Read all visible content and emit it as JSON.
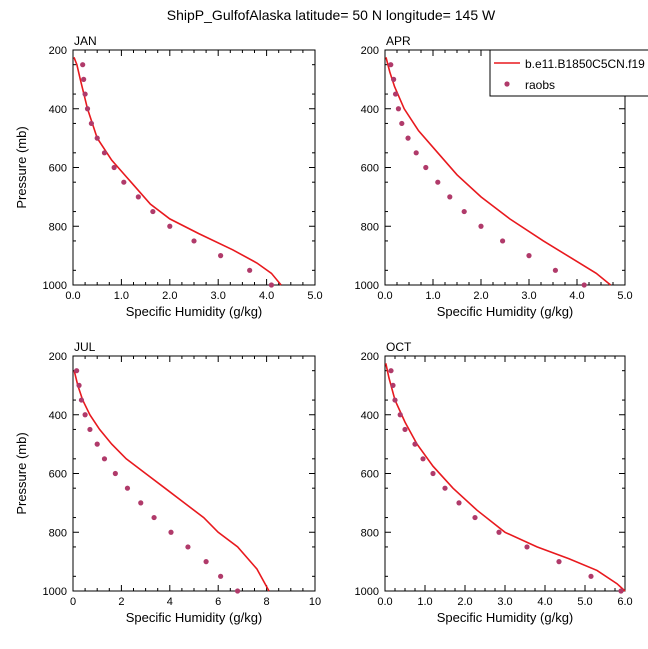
{
  "figure": {
    "title": "ShipP_GulfofAlaska  latitude= 50 N longitude= 145 W"
  },
  "legend": {
    "model_label": "b.e11.B1850C5CN.f19",
    "obs_label": "raobs",
    "model_color": "#e8191e",
    "obs_color": "#b03a6a"
  },
  "chart_data": [
    {
      "type": "line",
      "panel": "JAN",
      "xlabel": "Specific Humidity (g/kg)",
      "ylabel": "Pressure (mb)",
      "xlim": [
        0,
        5
      ],
      "ylim": [
        1000,
        200
      ],
      "xticks": [
        "0.0",
        "1.0",
        "2.0",
        "3.0",
        "4.0",
        "5.0"
      ],
      "yticks": [
        "200",
        "400",
        "600",
        "800",
        "1000"
      ],
      "model": {
        "x": [
          0.02,
          0.08,
          0.15,
          0.3,
          0.5,
          0.8,
          1.2,
          1.6,
          2.0,
          2.6,
          3.3,
          3.8,
          4.1,
          4.3
        ],
        "y": [
          225,
          250,
          300,
          400,
          500,
          575,
          650,
          725,
          775,
          825,
          880,
          925,
          960,
          1000
        ]
      },
      "obs": {
        "x": [
          0.2,
          0.22,
          0.25,
          0.3,
          0.38,
          0.5,
          0.65,
          0.85,
          1.05,
          1.35,
          1.65,
          2.0,
          2.5,
          3.05,
          3.65,
          4.1
        ],
        "y": [
          250,
          300,
          350,
          400,
          450,
          500,
          550,
          600,
          650,
          700,
          750,
          800,
          850,
          900,
          950,
          1000
        ]
      }
    },
    {
      "type": "line",
      "panel": "APR",
      "xlabel": "Specific Humidity (g/kg)",
      "ylabel": "",
      "xlim": [
        0,
        5
      ],
      "ylim": [
        1000,
        200
      ],
      "xticks": [
        "0.0",
        "1.0",
        "2.0",
        "3.0",
        "4.0",
        "5.0"
      ],
      "yticks": [
        "200",
        "400",
        "600",
        "800",
        "1000"
      ],
      "legend": "top-right",
      "model": {
        "x": [
          0.02,
          0.1,
          0.2,
          0.4,
          0.7,
          1.1,
          1.5,
          2.0,
          2.6,
          3.3,
          3.9,
          4.4,
          4.7
        ],
        "y": [
          225,
          275,
          325,
          400,
          475,
          550,
          625,
          700,
          775,
          850,
          910,
          960,
          1000
        ]
      },
      "obs": {
        "x": [
          0.12,
          0.18,
          0.22,
          0.28,
          0.35,
          0.48,
          0.65,
          0.85,
          1.1,
          1.35,
          1.65,
          2.0,
          2.45,
          3.0,
          3.55,
          4.15
        ],
        "y": [
          250,
          300,
          350,
          400,
          450,
          500,
          550,
          600,
          650,
          700,
          750,
          800,
          850,
          900,
          950,
          1000
        ]
      }
    },
    {
      "type": "line",
      "panel": "JUL",
      "xlabel": "Specific Humidity (g/kg)",
      "ylabel": "Pressure (mb)",
      "xlim": [
        0,
        10
      ],
      "ylim": [
        1000,
        200
      ],
      "xticks": [
        "0",
        "2",
        "4",
        "6",
        "8",
        "10"
      ],
      "yticks": [
        "200",
        "400",
        "600",
        "800",
        "1000"
      ],
      "model": {
        "x": [
          0.05,
          0.2,
          0.4,
          0.7,
          1.1,
          1.6,
          2.2,
          3.0,
          3.8,
          4.6,
          5.4,
          6.0,
          6.8,
          7.6,
          8.1
        ],
        "y": [
          250,
          300,
          350,
          400,
          450,
          500,
          550,
          600,
          650,
          700,
          750,
          800,
          850,
          925,
          1000
        ]
      },
      "obs": {
        "x": [
          0.15,
          0.25,
          0.35,
          0.5,
          0.7,
          1.0,
          1.3,
          1.75,
          2.25,
          2.8,
          3.35,
          4.05,
          4.75,
          5.5,
          6.1,
          6.8
        ],
        "y": [
          250,
          300,
          350,
          400,
          450,
          500,
          550,
          600,
          650,
          700,
          750,
          800,
          850,
          900,
          950,
          1000
        ]
      }
    },
    {
      "type": "line",
      "panel": "OCT",
      "xlabel": "Specific Humidity (g/kg)",
      "ylabel": "",
      "xlim": [
        0,
        6
      ],
      "ylim": [
        1000,
        200
      ],
      "xticks": [
        "0.0",
        "1.0",
        "2.0",
        "3.0",
        "4.0",
        "5.0",
        "6.0"
      ],
      "yticks": [
        "200",
        "400",
        "600",
        "800",
        "1000"
      ],
      "model": {
        "x": [
          0.02,
          0.1,
          0.25,
          0.5,
          0.8,
          1.2,
          1.7,
          2.3,
          3.0,
          3.8,
          4.6,
          5.3,
          5.8,
          6.0
        ],
        "y": [
          225,
          275,
          350,
          425,
          500,
          575,
          650,
          725,
          800,
          850,
          890,
          930,
          975,
          1000
        ]
      },
      "obs": {
        "x": [
          0.15,
          0.2,
          0.25,
          0.38,
          0.5,
          0.75,
          0.95,
          1.2,
          1.5,
          1.85,
          2.25,
          2.85,
          3.55,
          4.35,
          5.15,
          5.9
        ],
        "y": [
          250,
          300,
          350,
          400,
          450,
          500,
          550,
          600,
          650,
          700,
          750,
          800,
          850,
          900,
          950,
          1000
        ]
      }
    }
  ]
}
